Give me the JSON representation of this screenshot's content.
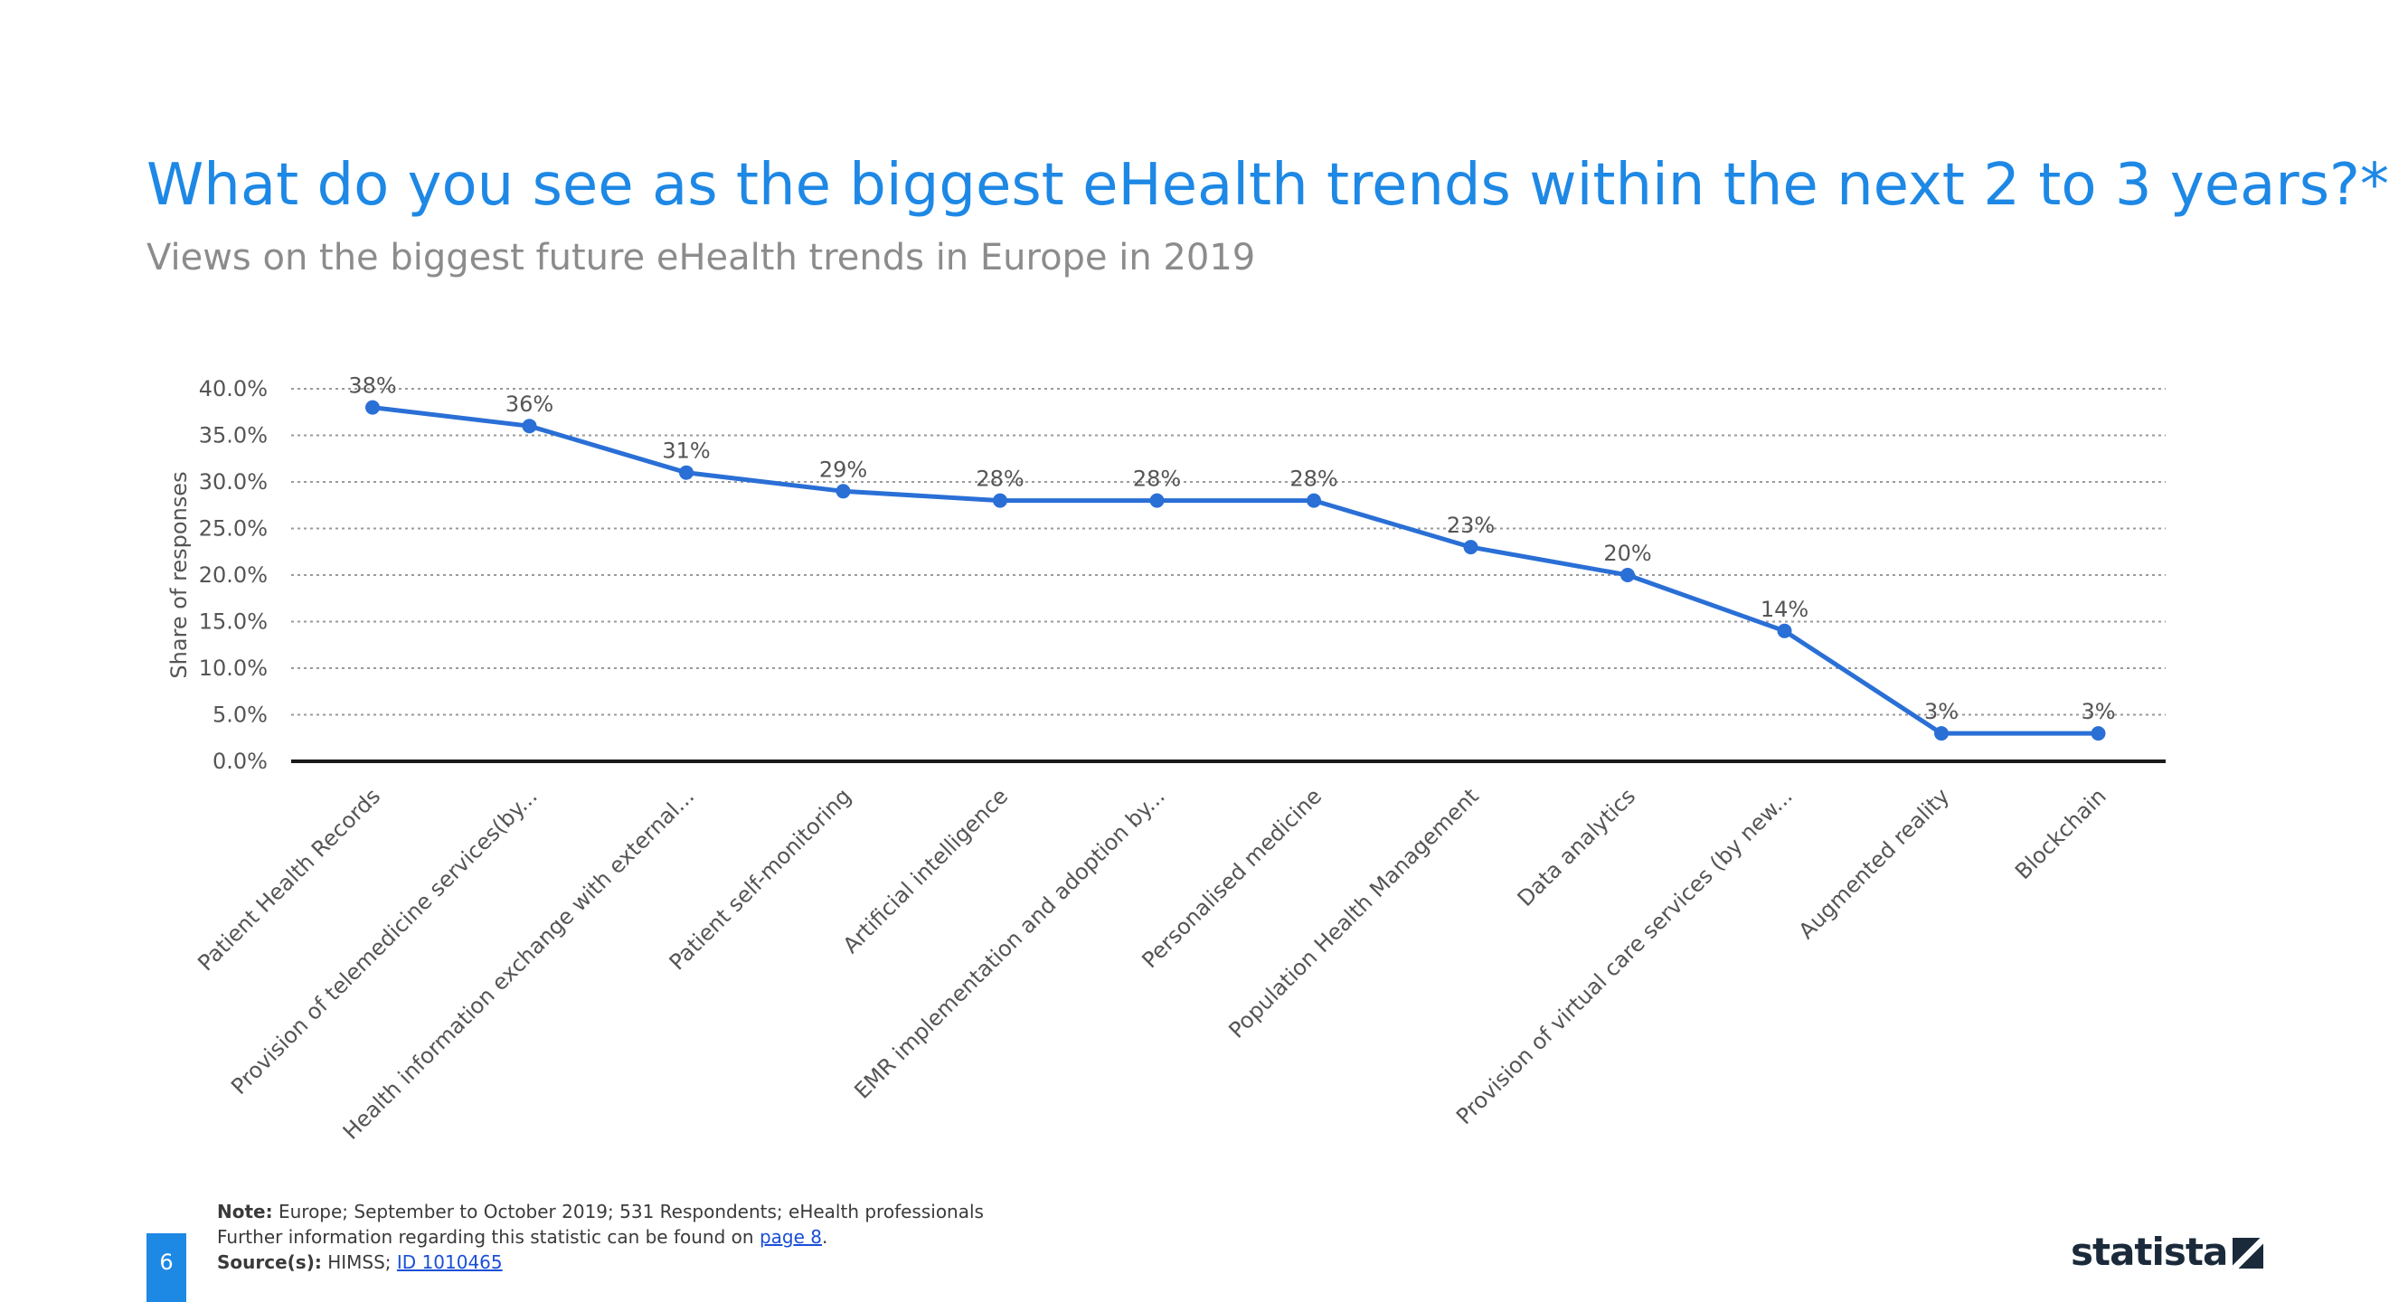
{
  "header": {
    "title": "What do you see as the biggest eHealth trends within the next 2 to 3 years?*",
    "subtitle": "Views on the biggest future eHealth trends in Europe in 2019"
  },
  "chart_data": {
    "type": "line",
    "title": "What do you see as the biggest eHealth trends within the next 2 to 3 years?*",
    "subtitle": "Views on the biggest future eHealth trends in Europe in 2019",
    "xlabel": "",
    "ylabel": "Share of responses",
    "ylim": [
      0,
      40
    ],
    "yticks": [
      "0.0%",
      "5.0%",
      "10.0%",
      "15.0%",
      "20.0%",
      "25.0%",
      "30.0%",
      "35.0%",
      "40.0%"
    ],
    "grid": true,
    "legend": "none",
    "categories": [
      "Patient Health Records",
      "Provision of telemedicine services(by...",
      "Health information exchange with external...",
      "Patient self-monitoring",
      "Artificial intelligence",
      "EMR implementation and adoption by...",
      "Personalised medicine",
      "Population Health Management",
      "Data analytics",
      "Provision of virtual care services (by new...",
      "Augmented reality",
      "Blockchain"
    ],
    "series": [
      {
        "values": [
          38,
          36,
          31,
          29,
          28,
          28,
          28,
          23,
          20,
          14,
          3,
          3
        ]
      }
    ],
    "data_labels": [
      "38%",
      "36%",
      "31%",
      "29%",
      "28%",
      "28%",
      "28%",
      "23%",
      "20%",
      "14%",
      "3%",
      "3%"
    ],
    "colors": {
      "line": "#2a6fd6",
      "grid": "#9a9a9a",
      "axis": "#1a1a1a"
    }
  },
  "footer": {
    "note_label": "Note:",
    "note_text": "Europe; September to October 2019; 531 Respondents; eHealth professionals",
    "info_text": "Further information regarding this statistic can be found on",
    "info_link": "page 8",
    "source_label": "Source(s):",
    "source_text": "HIMSS;",
    "source_link": "ID 1010465",
    "page_number": "6",
    "brand": "statista"
  }
}
